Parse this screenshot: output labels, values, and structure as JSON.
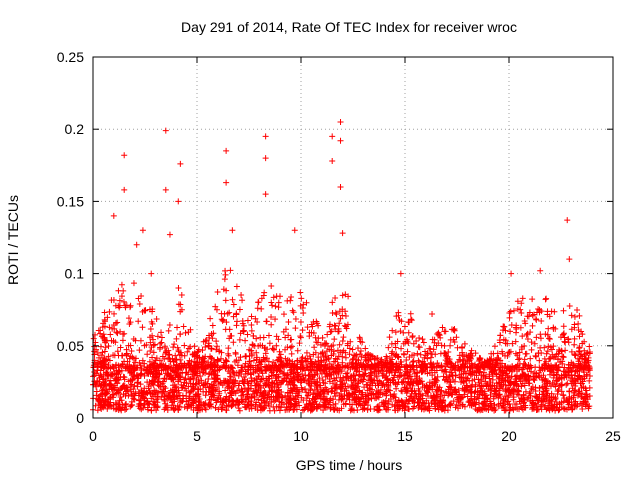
{
  "chart_data": {
    "type": "scatter",
    "title": "Day 291 of 2014, Rate Of TEC Index for receiver wroc",
    "xlabel": "GPS time / hours",
    "ylabel": "ROTI / TECUs",
    "xlim": [
      0,
      25
    ],
    "ylim": [
      0,
      0.25
    ],
    "xticks": [
      0,
      5,
      10,
      15,
      20,
      25
    ],
    "yticks": [
      0,
      0.05,
      0.1,
      0.15,
      0.2,
      0.25
    ],
    "xtick_labels": [
      "0",
      "5",
      "10",
      "15",
      "20",
      "25"
    ],
    "ytick_labels": [
      "0",
      "0.05",
      "0.1",
      "0.15",
      "0.2",
      "0.25"
    ],
    "grid": true,
    "marker": "plus",
    "color": "#ff0000",
    "series": [
      {
        "name": "ROTI",
        "x_range": [
          0,
          23.9
        ],
        "baseline_band": [
          0.005,
          0.035
        ],
        "peaks": [
          {
            "x": 1.0,
            "y": 0.14
          },
          {
            "x": 1.5,
            "y": 0.182
          },
          {
            "x": 1.5,
            "y": 0.158
          },
          {
            "x": 2.1,
            "y": 0.12
          },
          {
            "x": 2.4,
            "y": 0.13
          },
          {
            "x": 2.8,
            "y": 0.1
          },
          {
            "x": 3.5,
            "y": 0.199
          },
          {
            "x": 3.5,
            "y": 0.158
          },
          {
            "x": 3.7,
            "y": 0.127
          },
          {
            "x": 4.2,
            "y": 0.176
          },
          {
            "x": 4.1,
            "y": 0.15
          },
          {
            "x": 6.4,
            "y": 0.185
          },
          {
            "x": 6.4,
            "y": 0.163
          },
          {
            "x": 6.7,
            "y": 0.13
          },
          {
            "x": 8.3,
            "y": 0.195
          },
          {
            "x": 8.3,
            "y": 0.18
          },
          {
            "x": 8.3,
            "y": 0.155
          },
          {
            "x": 9.7,
            "y": 0.13
          },
          {
            "x": 11.5,
            "y": 0.195
          },
          {
            "x": 11.5,
            "y": 0.178
          },
          {
            "x": 11.9,
            "y": 0.205
          },
          {
            "x": 11.9,
            "y": 0.192
          },
          {
            "x": 11.9,
            "y": 0.16
          },
          {
            "x": 12.0,
            "y": 0.128
          },
          {
            "x": 14.8,
            "y": 0.1
          },
          {
            "x": 16.3,
            "y": 0.072
          },
          {
            "x": 20.1,
            "y": 0.1
          },
          {
            "x": 21.5,
            "y": 0.102
          },
          {
            "x": 22.8,
            "y": 0.137
          },
          {
            "x": 22.9,
            "y": 0.11
          }
        ],
        "envelope": [
          {
            "x": 0.0,
            "y": 0.055
          },
          {
            "x": 1.0,
            "y": 0.09
          },
          {
            "x": 2.0,
            "y": 0.1
          },
          {
            "x": 3.0,
            "y": 0.08
          },
          {
            "x": 3.5,
            "y": 0.05
          },
          {
            "x": 4.0,
            "y": 0.1
          },
          {
            "x": 5.0,
            "y": 0.045
          },
          {
            "x": 6.5,
            "y": 0.11
          },
          {
            "x": 7.5,
            "y": 0.07
          },
          {
            "x": 8.5,
            "y": 0.1
          },
          {
            "x": 9.5,
            "y": 0.085
          },
          {
            "x": 10.0,
            "y": 0.09
          },
          {
            "x": 11.0,
            "y": 0.06
          },
          {
            "x": 12.0,
            "y": 0.1
          },
          {
            "x": 13.0,
            "y": 0.05
          },
          {
            "x": 14.0,
            "y": 0.04
          },
          {
            "x": 14.8,
            "y": 0.09
          },
          {
            "x": 16.0,
            "y": 0.05
          },
          {
            "x": 17.0,
            "y": 0.07
          },
          {
            "x": 18.0,
            "y": 0.05
          },
          {
            "x": 19.0,
            "y": 0.04
          },
          {
            "x": 20.2,
            "y": 0.08
          },
          {
            "x": 21.5,
            "y": 0.09
          },
          {
            "x": 22.5,
            "y": 0.07
          },
          {
            "x": 23.0,
            "y": 0.09
          },
          {
            "x": 23.8,
            "y": 0.05
          }
        ]
      }
    ]
  }
}
